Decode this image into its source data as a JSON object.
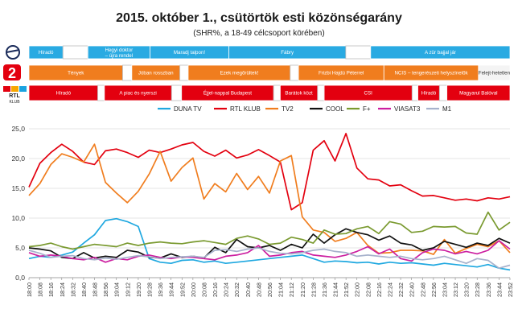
{
  "title": "2015. október 1., csütörtök esti közönségarány",
  "subtitle": "(SHR%, a 18-49 célcsoport körében)",
  "colors": {
    "blue_bar": "#29aae2",
    "orange_bar": "#f07d1e",
    "red_bar": "#e3000f"
  },
  "schedules": [
    {
      "channel": "M1",
      "logo": "m1-logo",
      "color": "#29aae2",
      "row_top": 57,
      "row_bottom": 73,
      "blocks": [
        {
          "label": "Híradó",
          "start": 0,
          "end": 4.1
        },
        {
          "label": "",
          "start": 4.1,
          "end": 7.1,
          "blank": true
        },
        {
          "label": "Hegyi doktor – újra rendel",
          "start": 7.1,
          "end": 14.6
        },
        {
          "label": "Maradj talpon!",
          "start": 14.6,
          "end": 24.1
        },
        {
          "label": "Fábry",
          "start": 24.1,
          "end": 38.2
        },
        {
          "label": "",
          "start": 38.2,
          "end": 41.2,
          "blank": true
        },
        {
          "label": "A zûr bajjal jár",
          "start": 41.2,
          "end": 58
        }
      ]
    },
    {
      "channel": "TV2",
      "logo": "tv2-logo",
      "color": "#f07d1e",
      "row_top": 81,
      "row_bottom": 100,
      "blocks": [
        {
          "label": "Tények",
          "start": 0,
          "end": 11.3
        },
        {
          "label": "",
          "start": 11.3,
          "end": 12.4,
          "blank": true
        },
        {
          "label": "Jóban rosszban",
          "start": 12.4,
          "end": 18.2
        },
        {
          "label": "",
          "start": 18.2,
          "end": 19.2,
          "blank": true
        },
        {
          "label": "Ezek megõrültek!",
          "start": 19.2,
          "end": 31.5
        },
        {
          "label": "",
          "start": 31.5,
          "end": 32.5,
          "blank": true
        },
        {
          "label": "Frizbi Hajdú Péterrel",
          "start": 32.5,
          "end": 42.8
        },
        {
          "label": "NCIS – tengerészeti helyszínelõk",
          "start": 42.8,
          "end": 54.2
        },
        {
          "label": "Felejt-hetetlen",
          "start": 54.2,
          "end": 58,
          "light": true
        }
      ]
    },
    {
      "channel": "RTL KLUB",
      "logo": "rtl-logo",
      "color": "#e3000f",
      "row_top": 106,
      "row_bottom": 125,
      "blocks": [
        {
          "label": "Híradó",
          "start": 0,
          "end": 8.3
        },
        {
          "label": "",
          "start": 8.3,
          "end": 9.1,
          "blank": true
        },
        {
          "label": "A piac és nyerszi",
          "start": 9.1,
          "end": 17.2
        },
        {
          "label": "",
          "start": 17.2,
          "end": 18.4,
          "blank": true
        },
        {
          "label": "Éjjel-nappal Budapest",
          "start": 18.4,
          "end": 29.5
        },
        {
          "label": "",
          "start": 29.5,
          "end": 30.3,
          "blank": true
        },
        {
          "label": "Barátok közt",
          "start": 30.3,
          "end": 34.8
        },
        {
          "label": "",
          "start": 34.8,
          "end": 35.6,
          "blank": true
        },
        {
          "label": "CSI",
          "start": 35.6,
          "end": 46.2
        },
        {
          "label": "",
          "start": 46.2,
          "end": 46.9,
          "blank": true
        },
        {
          "label": "Híradó",
          "start": 46.9,
          "end": 49.5
        },
        {
          "label": "",
          "start": 49.5,
          "end": 50.4,
          "blank": true
        },
        {
          "label": "Magyarul Balóval",
          "start": 50.4,
          "end": 58
        }
      ]
    }
  ],
  "logos": {
    "m1": "m1-logo",
    "tv2_text": "2",
    "rtl_text": "RTL",
    "rtl_sub": "KLUB"
  },
  "chart_data": {
    "type": "line",
    "x": [
      "18:00",
      "18:08",
      "18:16",
      "18:24",
      "18:32",
      "18:40",
      "18:48",
      "18:56",
      "19:04",
      "19:12",
      "19:20",
      "19:28",
      "19:36",
      "19:44",
      "19:52",
      "20:00",
      "20:08",
      "20:16",
      "20:24",
      "20:32",
      "20:40",
      "20:48",
      "20:56",
      "21:04",
      "21:12",
      "21:20",
      "21:28",
      "21:36",
      "21:44",
      "21:52",
      "22:00",
      "22:08",
      "22:16",
      "22:24",
      "22:32",
      "22:40",
      "22:48",
      "22:56",
      "23:04",
      "23:12",
      "23:20",
      "23:28",
      "23:36",
      "23:44",
      "23:52"
    ],
    "ylim": [
      0,
      25
    ],
    "yticks": [
      "0,0",
      "5,0",
      "10,0",
      "15,0",
      "20,0",
      "25,0"
    ],
    "grid": true,
    "legend": "top",
    "series": [
      {
        "name": "DUNA TV",
        "color": "#1fa8e0",
        "values": [
          3.2,
          3.6,
          3.4,
          3.8,
          4.3,
          5.8,
          7.2,
          9.6,
          9.9,
          9.4,
          8.6,
          3.2,
          2.6,
          2.4,
          2.9,
          3.0,
          2.6,
          2.8,
          2.4,
          2.6,
          2.8,
          3.0,
          3.2,
          3.4,
          3.6,
          3.8,
          3.2,
          2.6,
          2.8,
          2.7,
          2.5,
          2.6,
          2.3,
          2.6,
          2.4,
          2.5,
          2.3,
          2.1,
          2.4,
          2.2,
          2.0,
          1.8,
          2.2,
          1.6,
          1.3
        ]
      },
      {
        "name": "RTL KLUB",
        "color": "#e3000f",
        "values": [
          15.2,
          19.2,
          21.0,
          22.4,
          21.2,
          19.4,
          19.0,
          21.3,
          21.6,
          21.0,
          20.2,
          21.4,
          21.0,
          21.6,
          22.3,
          22.7,
          21.2,
          20.4,
          21.4,
          20.1,
          20.6,
          21.5,
          20.5,
          19.4,
          11.4,
          12.6,
          21.4,
          23.0,
          19.6,
          24.2,
          18.4,
          16.6,
          16.4,
          15.4,
          15.6,
          14.6,
          13.7,
          13.8,
          13.4,
          13.0,
          13.2,
          12.9,
          13.4,
          13.2,
          13.6
        ]
      },
      {
        "name": "TV2",
        "color": "#f07d1e",
        "values": [
          13.8,
          15.8,
          19.0,
          20.8,
          20.2,
          19.4,
          22.4,
          16.0,
          14.2,
          12.6,
          14.5,
          17.4,
          21.2,
          16.2,
          18.5,
          20.1,
          13.2,
          15.8,
          14.4,
          17.5,
          14.8,
          17.0,
          14.2,
          19.6,
          20.5,
          10.2,
          8.0,
          7.6,
          6.1,
          6.6,
          7.6,
          5.4,
          4.1,
          4.2,
          4.6,
          4.6,
          4.5,
          3.9,
          6.4,
          4.1,
          4.9,
          5.6,
          5.2,
          6.2,
          4.2
        ]
      },
      {
        "name": "COOL",
        "color": "#111111",
        "values": [
          5.0,
          4.8,
          4.5,
          3.4,
          3.2,
          4.2,
          3.3,
          3.6,
          3.4,
          4.6,
          4.3,
          3.4,
          3.3,
          4.0,
          3.4,
          3.6,
          3.3,
          5.1,
          4.2,
          6.4,
          5.2,
          5.0,
          5.4,
          4.6,
          5.6,
          5.0,
          7.3,
          5.8,
          7.2,
          8.2,
          7.6,
          7.2,
          6.3,
          7.0,
          5.8,
          5.5,
          4.6,
          5.0,
          6.1,
          5.6,
          5.1,
          5.8,
          5.4,
          6.6,
          5.8
        ]
      },
      {
        "name": "F+",
        "color": "#7a9a30",
        "values": [
          5.2,
          5.4,
          5.8,
          5.2,
          4.8,
          5.2,
          5.6,
          5.4,
          5.2,
          5.8,
          5.4,
          5.8,
          6.0,
          5.8,
          5.7,
          6.0,
          6.2,
          5.9,
          5.6,
          6.6,
          7.0,
          6.5,
          5.6,
          5.8,
          6.8,
          6.4,
          5.8,
          8.0,
          7.3,
          7.4,
          8.2,
          8.6,
          7.4,
          9.4,
          9.0,
          7.6,
          7.8,
          8.6,
          8.5,
          8.6,
          7.5,
          7.3,
          11.0,
          8.0,
          9.3
        ]
      },
      {
        "name": "VIASAT3",
        "color": "#cc1fa0",
        "values": [
          4.2,
          3.6,
          3.8,
          3.6,
          3.2,
          3.0,
          3.4,
          2.6,
          3.2,
          3.0,
          3.6,
          3.8,
          3.4,
          3.2,
          3.5,
          3.4,
          3.2,
          3.0,
          3.6,
          3.8,
          4.2,
          5.4,
          3.6,
          3.8,
          4.2,
          4.4,
          3.8,
          3.6,
          3.4,
          3.8,
          4.4,
          5.2,
          4.0,
          4.8,
          3.2,
          2.8,
          4.2,
          4.8,
          4.6,
          4.0,
          4.4,
          4.0,
          4.6,
          6.2,
          4.8
        ]
      },
      {
        "name": "M1",
        "color": "#a7b2cc",
        "values": [
          4.6,
          4.1,
          3.4,
          3.6,
          3.7,
          3.2,
          3.0,
          3.3,
          3.1,
          3.4,
          3.7,
          3.5,
          3.2,
          3.4,
          3.5,
          3.6,
          3.4,
          4.6,
          4.7,
          4.4,
          4.8,
          5.0,
          4.4,
          4.1,
          4.0,
          4.2,
          4.6,
          4.8,
          4.4,
          4.2,
          3.6,
          3.8,
          3.6,
          3.4,
          3.6,
          3.2,
          3.0,
          3.2,
          3.6,
          3.0,
          2.4,
          3.2,
          2.9,
          1.6,
          2.1
        ]
      }
    ]
  }
}
